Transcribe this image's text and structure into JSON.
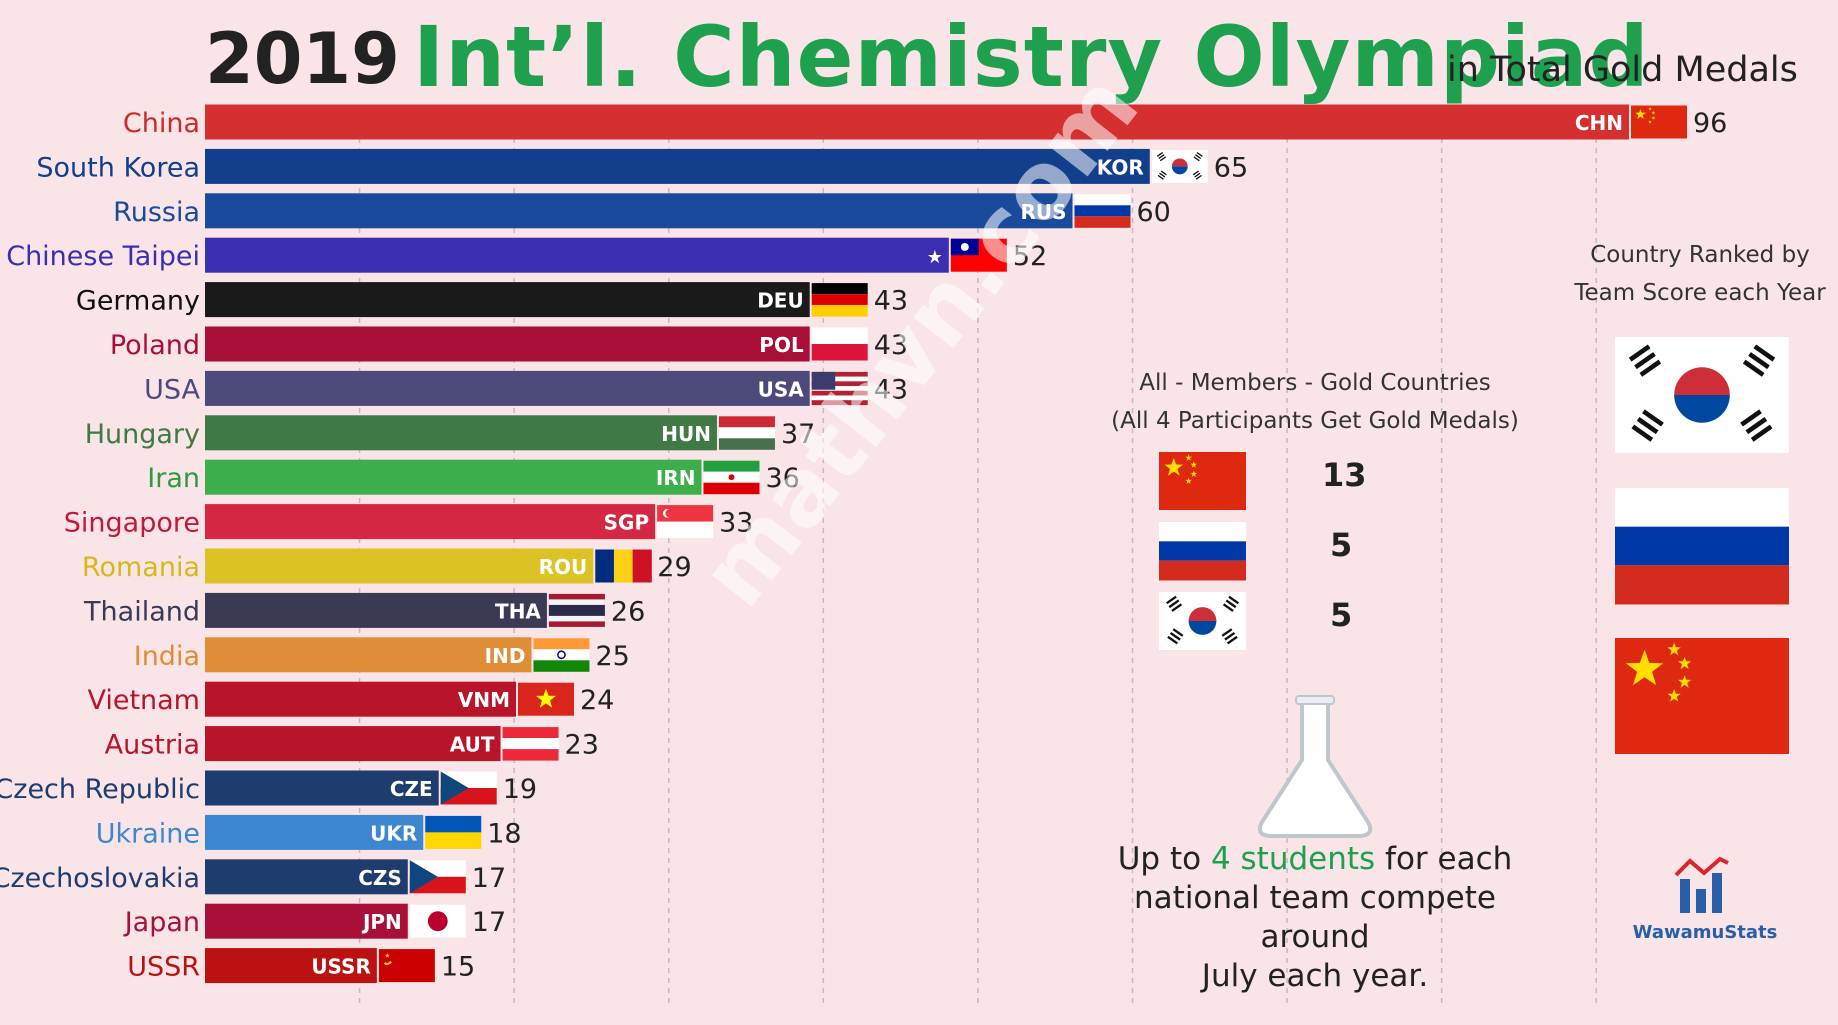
{
  "header": {
    "year": "2019",
    "title": "Int’l. Chemistry Olympiad",
    "subtitle": "in Total Gold Medals"
  },
  "watermark": "mathvn.com",
  "side_panel": {
    "caption_line1": "Country Ranked by",
    "caption_line2": "Team Score each Year",
    "flags": [
      "KOR",
      "RUS",
      "CHN"
    ]
  },
  "all_members_gold": {
    "title_line1": "All - Members - Gold Countries",
    "title_line2": "(All 4 Participants Get Gold Medals)",
    "rows": [
      {
        "flag": "CHN",
        "count": "13"
      },
      {
        "flag": "RUS",
        "count": "5"
      },
      {
        "flag": "KOR",
        "count": "5"
      }
    ]
  },
  "note": {
    "line1_prefix": "Up to ",
    "line1_highlight": "4 students",
    "line1_suffix": " for each",
    "line2": "national team compete around",
    "line3": "July each year."
  },
  "logo": {
    "text": "WawamuStats",
    "icon": "chart-logo-icon"
  },
  "colors": {
    "title_green": "#1ea04f",
    "background": "#f9e4e8"
  },
  "chart_data": {
    "type": "bar",
    "orientation": "horizontal",
    "title": "Int’l. Chemistry Olympiad",
    "subtitle": "in Total Gold Medals",
    "grid": true,
    "xlim": [
      0,
      100
    ],
    "categories": [
      "China",
      "South Korea",
      "Russia",
      "Chinese Taipei",
      "Germany",
      "Poland",
      "USA",
      "Hungary",
      "Iran",
      "Singapore",
      "Romania",
      "Thailand",
      "India",
      "Vietnam",
      "Austria",
      "Czech Republic",
      "Ukraine",
      "Czechoslovakia",
      "Japan",
      "USSR"
    ],
    "codes": [
      "CHN",
      "KOR",
      "RUS",
      "",
      "DEU",
      "POL",
      "USA",
      "HUN",
      "IRN",
      "SGP",
      "ROU",
      "THA",
      "IND",
      "VNM",
      "AUT",
      "CZE",
      "UKR",
      "CZS",
      "JPN",
      "USSR"
    ],
    "values": [
      96,
      65,
      60,
      52,
      43,
      43,
      43,
      37,
      36,
      33,
      29,
      26,
      25,
      24,
      23,
      19,
      18,
      17,
      17,
      15
    ],
    "bar_colors": [
      "#d62f2f",
      "#123f8c",
      "#1a4a9c",
      "#3a2fb0",
      "#1a1a1a",
      "#a8103a",
      "#4c4a7a",
      "#3f7a45",
      "#3cae4c",
      "#d42743",
      "#dcc222",
      "#3a3a55",
      "#df8d36",
      "#b8142a",
      "#b8142a",
      "#1e3d6e",
      "#3d87d0",
      "#1e3d6e",
      "#a8103a",
      "#bb1111"
    ],
    "label_colors": [
      "#cc2a2a",
      "#123f8c",
      "#1a4a9c",
      "#3a2fb0",
      "#111111",
      "#a8103a",
      "#4c4a7a",
      "#3f7a45",
      "#2f9a3f",
      "#c2193a",
      "#d8b818",
      "#3a3a55",
      "#df8d36",
      "#b8142a",
      "#b8142a",
      "#1e3d6e",
      "#3d87d0",
      "#1e3d6e",
      "#a8103a",
      "#bb1111"
    ]
  }
}
